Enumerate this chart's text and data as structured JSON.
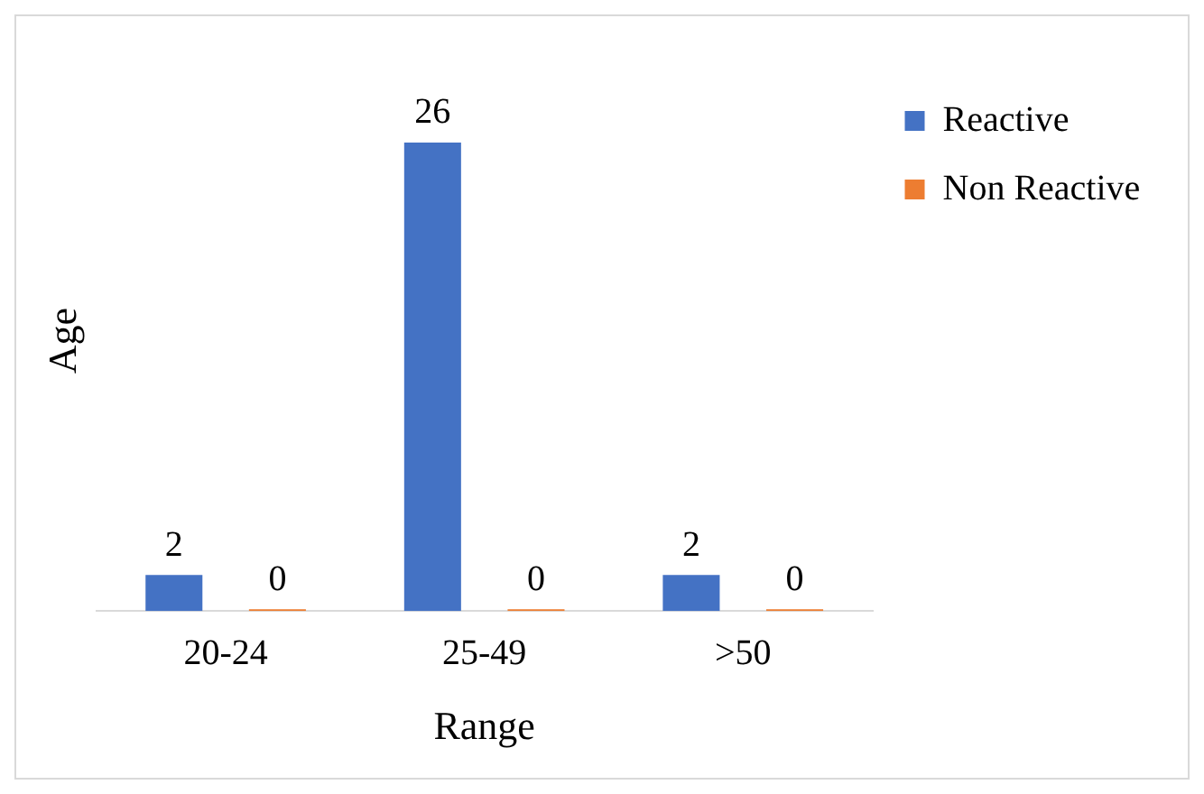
{
  "chart_data": {
    "type": "bar",
    "xlabel": "Range",
    "ylabel": "Age",
    "categories": [
      "20-24",
      "25-49",
      ">50"
    ],
    "series": [
      {
        "name": "Reactive",
        "color": "#4472c4",
        "values": [
          2,
          26,
          2
        ]
      },
      {
        "name": "Non Reactive",
        "color": "#ed7d31",
        "values": [
          0,
          0,
          0
        ]
      }
    ],
    "data_labels": true,
    "legend": "top right",
    "grid": false
  }
}
